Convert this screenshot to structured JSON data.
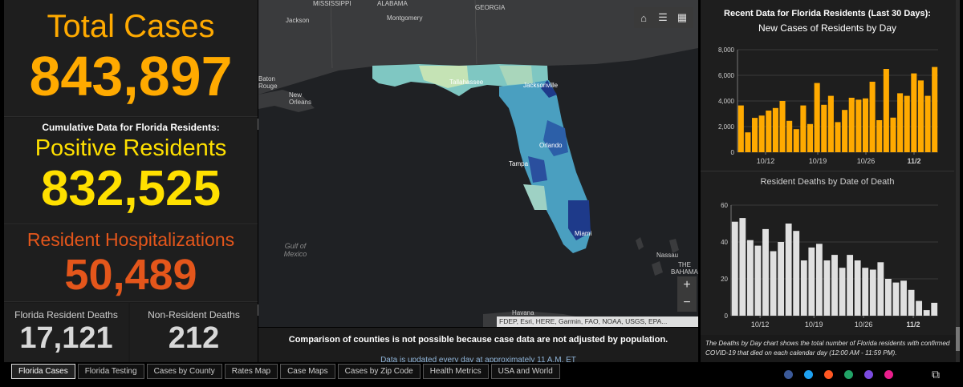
{
  "summary": {
    "total_title": "Total Cases",
    "total_value": "843,897",
    "cumulative_header": "Cumulative Data for Florida Residents:",
    "positive_title": "Positive Residents",
    "positive_value": "832,525",
    "hosp_title": "Resident Hospitalizations",
    "hosp_value": "50,489",
    "resident_deaths_label": "Florida Resident Deaths",
    "resident_deaths_value": "17,121",
    "nonresident_deaths_label": "Non-Resident Deaths",
    "nonresident_deaths_value": "212"
  },
  "map": {
    "labels": {
      "mississippi": "MISSISSIPPI",
      "alabama": "ALABAMA",
      "georgia": "GEORGIA",
      "jackson": "Jackson",
      "montgomery": "Montgomery",
      "baton_rouge": "Baton Rouge",
      "new_orleans": "New Orleans",
      "tallahassee": "Tallahassee",
      "jacksonville": "Jacksonville",
      "orlando": "Orlando",
      "tampa": "Tampa",
      "miami": "Miami",
      "gulf": "Gulf of Mexico",
      "nassau": "Nassau",
      "bahamas": "THE BAHAMAS",
      "havana": "Havana"
    },
    "tools": {
      "home_icon": "home-icon",
      "list_icon": "list-icon",
      "qr_icon": "qr-icon"
    },
    "zoom_in": "+",
    "zoom_out": "−",
    "attribution": "FDEP, Esri, HERE, Garmin, FAO, NOAA, USGS, EPA...",
    "note_bold": "Comparison of counties is not possible because case data are not adjusted by population.",
    "note_small": "Data is updated every day at approximately 11 A.M. ET"
  },
  "right_panel": {
    "title": "Recent Data for Florida Residents (Last 30 Days):",
    "cases_subtitle": "New Cases of Residents by Day",
    "deaths_subtitle": "Resident Deaths by Date of Death",
    "footnote": "The Deaths by Day chart shows the total number of Florida residents with confirmed COVID-19 that died on each calendar day (12:00 AM - 11:59 PM)."
  },
  "chart_data": [
    {
      "type": "bar",
      "title": "New Cases of Residents by Day",
      "tick_labels": [
        "10/12",
        "10/19",
        "10/26",
        "11/2"
      ],
      "values": [
        3650,
        1550,
        2680,
        2860,
        3250,
        3450,
        4000,
        2450,
        1800,
        3650,
        2200,
        5400,
        3700,
        4400,
        2350,
        3300,
        4250,
        4100,
        4200,
        5500,
        2500,
        6500,
        2700,
        4600,
        4400,
        6150,
        5600,
        4400,
        6650
      ],
      "yticks": [
        0,
        2000,
        4000,
        6000,
        8000
      ],
      "ytick_labels": [
        "0",
        "2,000",
        "4,000",
        "6,000",
        "8,000"
      ],
      "ylim": [
        0,
        8000
      ],
      "color": "#ffaa00"
    },
    {
      "type": "bar",
      "title": "Resident Deaths by Date of Death",
      "tick_labels": [
        "10/12",
        "10/19",
        "10/26",
        "11/2"
      ],
      "values": [
        51,
        53,
        41,
        38,
        47,
        35,
        40,
        50,
        46,
        30,
        37,
        39,
        30,
        33,
        26,
        33,
        30,
        26,
        25,
        29,
        20,
        18,
        19,
        14,
        8,
        3,
        7
      ],
      "yticks": [
        0,
        20,
        40,
        60
      ],
      "ytick_labels": [
        "0",
        "20",
        "40",
        "60"
      ],
      "ylim": [
        0,
        60
      ],
      "color": "#e0e0e0"
    }
  ],
  "tabs": [
    {
      "label": "Florida Cases",
      "active": true
    },
    {
      "label": "Florida Testing",
      "active": false
    },
    {
      "label": "Cases by County",
      "active": false
    },
    {
      "label": "Rates Map",
      "active": false
    },
    {
      "label": "Case Maps",
      "active": false
    },
    {
      "label": "Cases by Zip Code",
      "active": false
    },
    {
      "label": "Health Metrics",
      "active": false
    },
    {
      "label": "USA and World",
      "active": false
    }
  ],
  "social": [
    {
      "name": "facebook-icon",
      "color": "#3b5998"
    },
    {
      "name": "twitter-icon",
      "color": "#1da1f2"
    },
    {
      "name": "reddit-icon",
      "color": "#ff5722"
    },
    {
      "name": "sheets-icon",
      "color": "#21a366"
    },
    {
      "name": "pinterest-icon",
      "color": "#7b4be0"
    },
    {
      "name": "link-icon",
      "color": "#e91e8c"
    }
  ],
  "colors": {
    "total": "#ffaa00",
    "positive": "#ffe000",
    "hospital": "#e4561b",
    "deaths": "#d8d8d8"
  }
}
